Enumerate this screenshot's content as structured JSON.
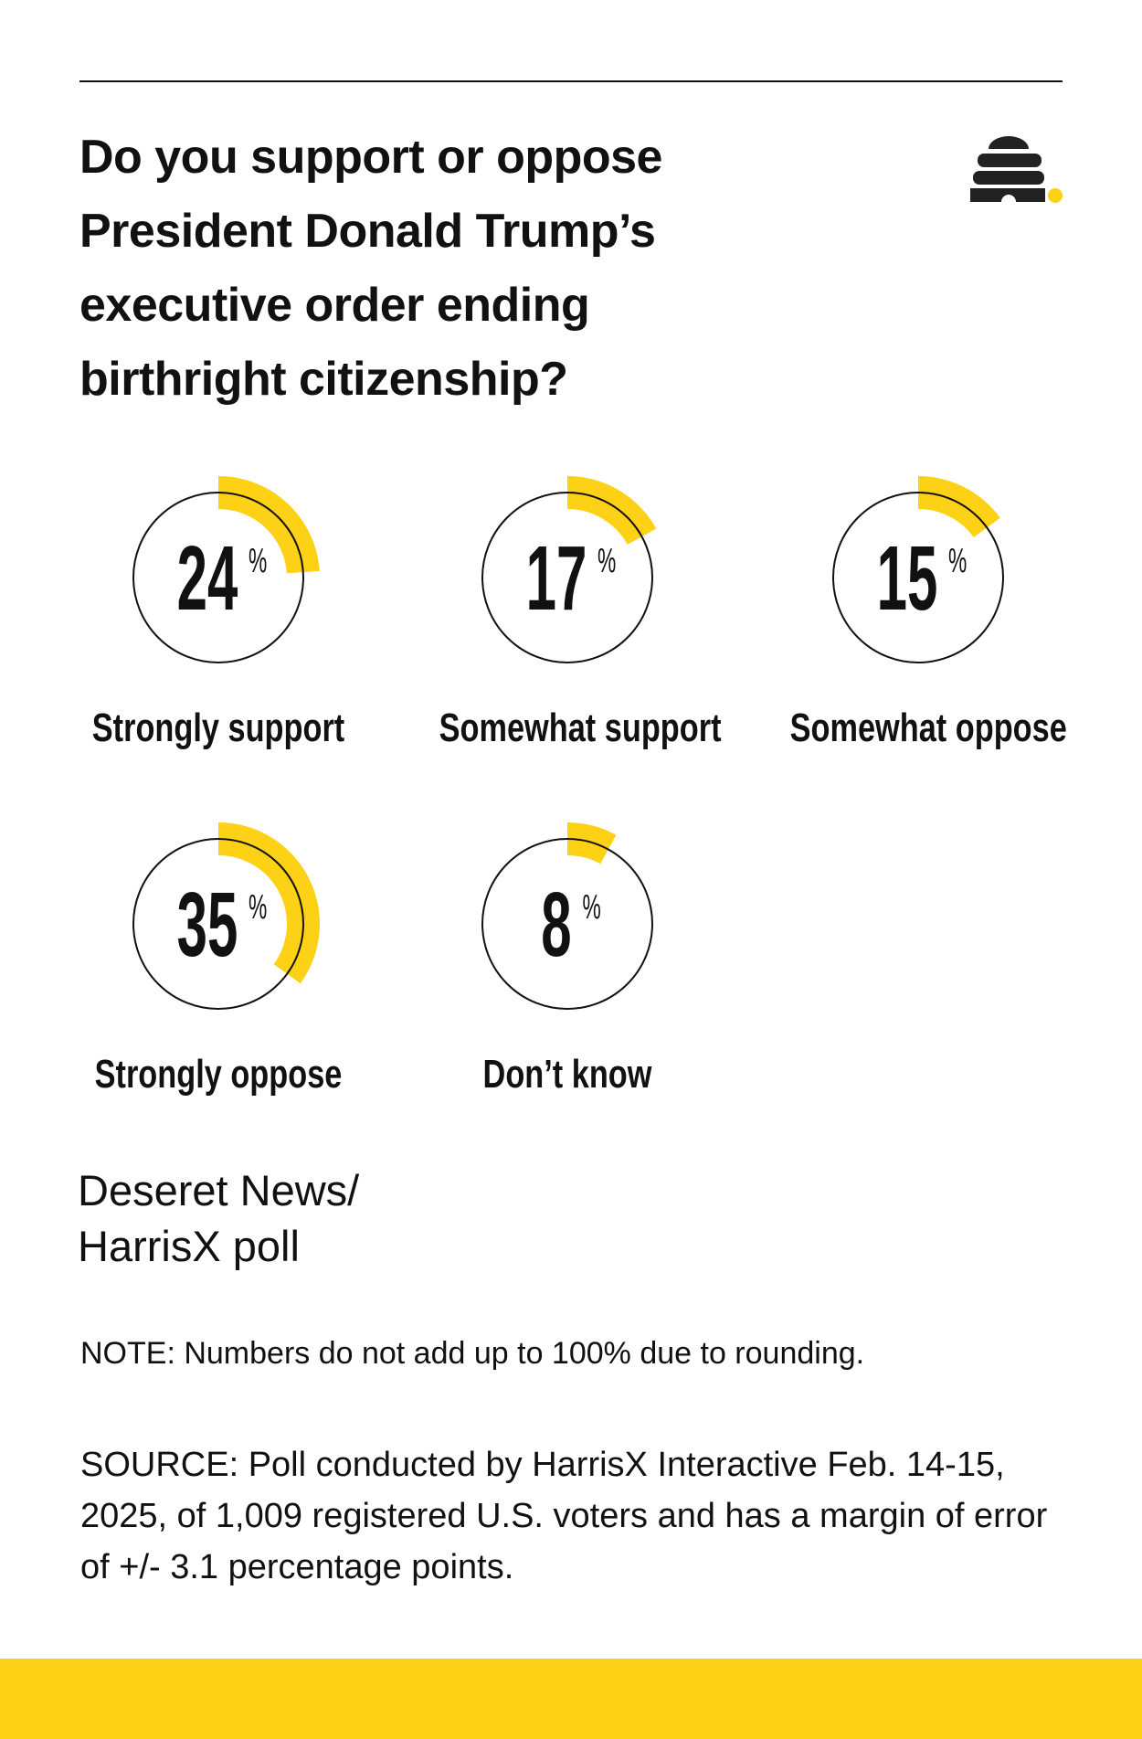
{
  "title": "Do you support or oppose President Donald Trump’s executive order ending birthright citizenship?",
  "source_name_line1": "Deseret News/",
  "source_name_line2": "HarrisX poll",
  "note": "NOTE: Numbers do not add up to 100% due to rounding.",
  "source": "SOURCE: Poll conducted by HarrisX Interactive Feb. 14-15, 2025, of 1,009 registered U.S. voters and has a margin of error of +/- 3.1 percentage points.",
  "colors": {
    "accent": "#fcd116",
    "text": "#111111"
  },
  "logo_icon": "beehive-icon",
  "chart_data": {
    "type": "radial-gauge",
    "unit": "%",
    "categories": [
      "Strongly support",
      "Somewhat support",
      "Somewhat oppose",
      "Strongly oppose",
      "Don’t know"
    ],
    "values": [
      24,
      17,
      15,
      35,
      8
    ],
    "value_labels": [
      "24",
      "17",
      "15",
      "35",
      "8"
    ],
    "range": [
      0,
      100
    ]
  }
}
